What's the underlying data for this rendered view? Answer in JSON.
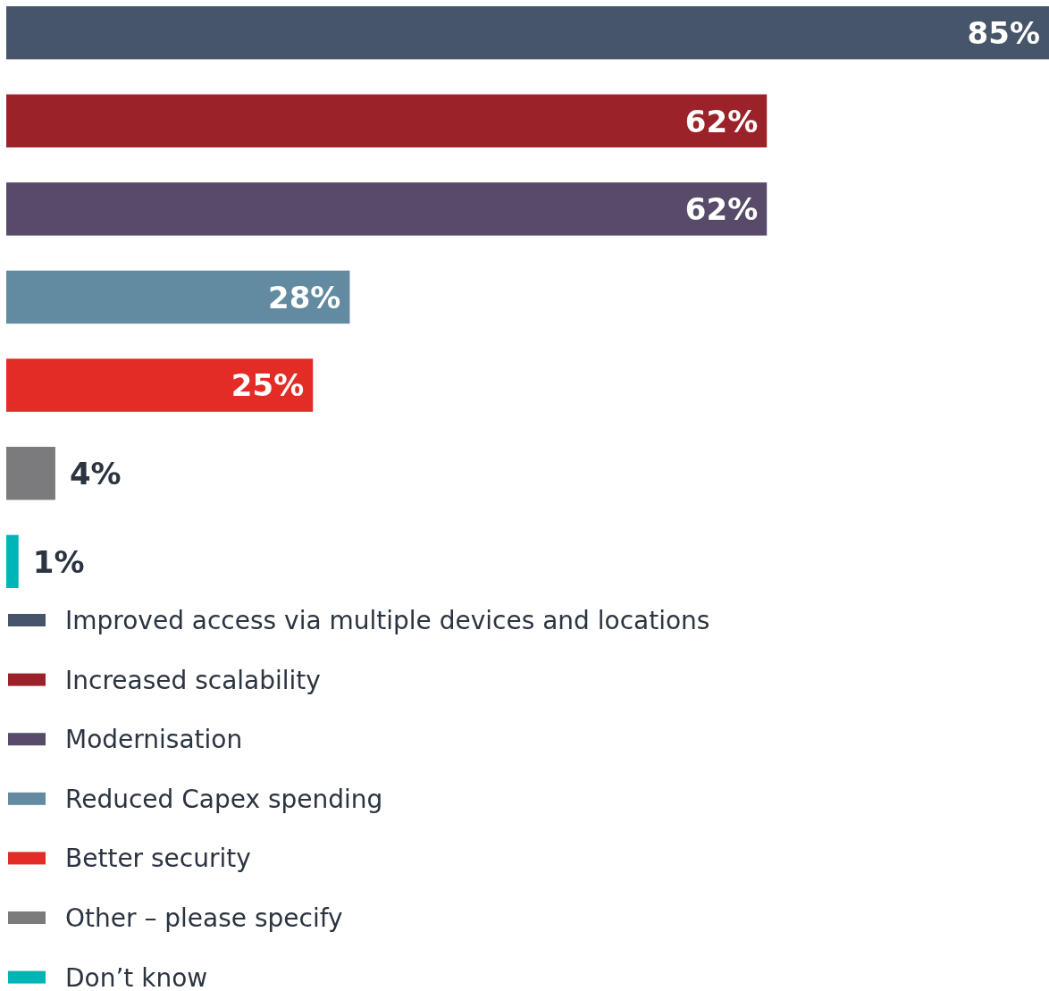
{
  "chart_data": {
    "type": "bar",
    "orientation": "horizontal",
    "stacked": true,
    "categories": [
      null,
      null,
      null,
      null,
      null,
      null,
      null
    ],
    "series": [
      {
        "name": "Improved access via multiple devices and locations",
        "color": "#465569",
        "values": [
          85,
          null,
          null,
          null,
          null,
          null,
          null
        ],
        "value_labels": [
          "85%",
          null,
          null,
          null,
          null,
          null,
          null
        ]
      },
      {
        "name": "Increased scalability",
        "color": "#9b2229",
        "values": [
          null,
          62,
          null,
          null,
          null,
          null,
          null
        ],
        "value_labels": [
          null,
          "62%",
          null,
          null,
          null,
          null,
          null
        ]
      },
      {
        "name": "Modernisation",
        "color": "#584b6a",
        "values": [
          null,
          null,
          62,
          null,
          null,
          null,
          null
        ],
        "value_labels": [
          null,
          null,
          "62%",
          null,
          null,
          null,
          null
        ]
      },
      {
        "name": "Reduced Capex spending",
        "color": "#628aa0",
        "values": [
          null,
          null,
          null,
          28,
          null,
          null,
          null
        ],
        "value_labels": [
          null,
          null,
          null,
          "28%",
          null,
          null,
          null
        ]
      },
      {
        "name": "Better security",
        "color": "#e32c26",
        "values": [
          null,
          null,
          null,
          null,
          25,
          null,
          null
        ],
        "value_labels": [
          null,
          null,
          null,
          null,
          "25%",
          null,
          null
        ]
      },
      {
        "name": "Other – please specify",
        "color": "#7b7b7e",
        "values": [
          null,
          null,
          null,
          null,
          null,
          4,
          null
        ],
        "value_labels": [
          null,
          null,
          null,
          null,
          null,
          "4%",
          null
        ]
      },
      {
        "name": "Don’t know",
        "color": "#00b5b5",
        "values": [
          null,
          null,
          null,
          null,
          null,
          null,
          1
        ],
        "value_labels": [
          null,
          null,
          null,
          null,
          null,
          null,
          "1%"
        ]
      }
    ],
    "xlim": [
      0,
      85
    ],
    "tick_labels": false,
    "legend": "bottom"
  }
}
